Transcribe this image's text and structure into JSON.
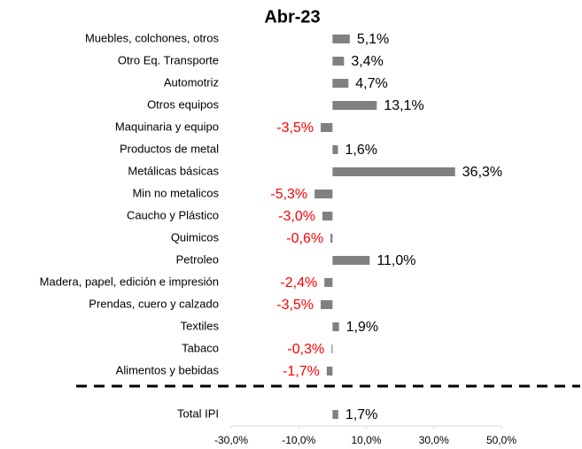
{
  "chart_data": {
    "type": "bar",
    "orientation": "horizontal",
    "title": "Abr-23",
    "categories": [
      "Muebles, colchones, otros",
      "Otro Eq. Transporte",
      "Automotriz",
      "Otros equipos",
      "Maquinaria y equipo",
      "Productos de metal",
      "Metálicas básicas",
      "Min no metalicos",
      "Caucho y Plástico",
      "Quimicos",
      "Petroleo",
      "Madera, papel, edición e impresión",
      "Prendas, cuero y calzado",
      "Textiles",
      "Tabaco",
      "Alimentos y bebidas",
      "Total IPI"
    ],
    "values": [
      5.1,
      3.4,
      4.7,
      13.1,
      -3.5,
      1.6,
      36.3,
      -5.3,
      -3.0,
      -0.6,
      11.0,
      -2.4,
      -3.5,
      1.9,
      -0.3,
      -1.7,
      1.7
    ],
    "value_labels": [
      "5,1%",
      "3,4%",
      "4,7%",
      "13,1%",
      "-3,5%",
      "1,6%",
      "36,3%",
      "-5,3%",
      "-3,0%",
      "-0,6%",
      "11,0%",
      "-2,4%",
      "-3,5%",
      "1,9%",
      "-0,3%",
      "-1,7%",
      "1,7%"
    ],
    "color": "#808080",
    "negative_label_color": "#ff0000",
    "positive_label_color": "#000000",
    "xlim": [
      -30,
      50
    ],
    "xticks": [
      {
        "value": -30,
        "label": "-30,0%"
      },
      {
        "value": -10,
        "label": "-10,0%"
      },
      {
        "value": 10,
        "label": "10,0%"
      },
      {
        "value": 30,
        "label": "30,0%"
      },
      {
        "value": 50,
        "label": "50,0%"
      }
    ]
  }
}
